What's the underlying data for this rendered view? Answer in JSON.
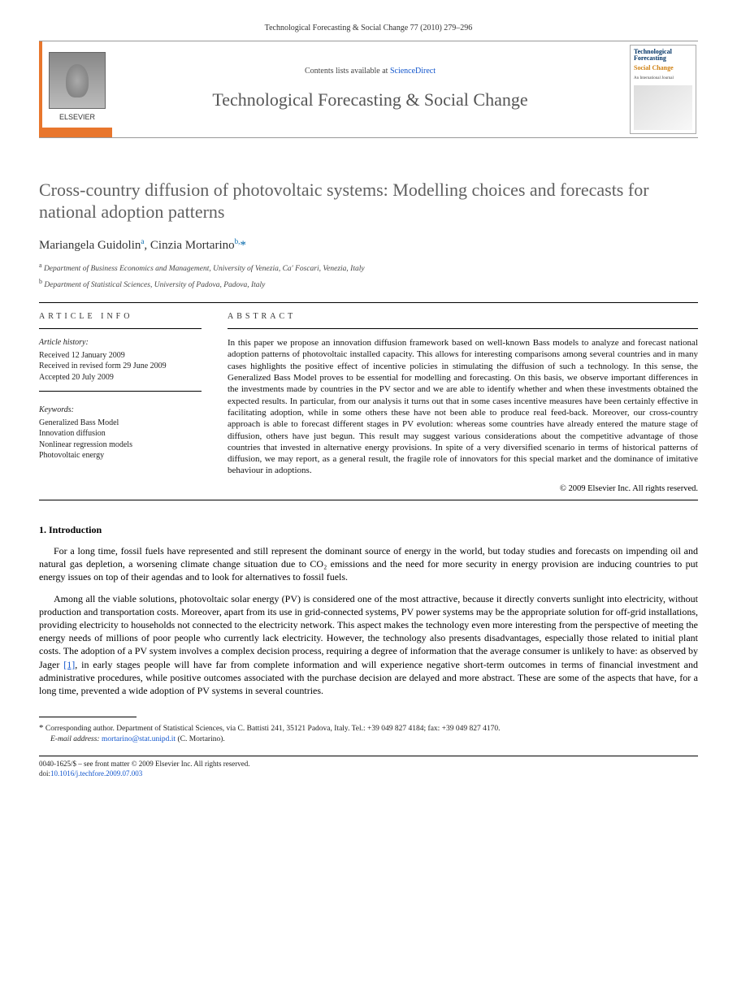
{
  "header": {
    "citation": "Technological Forecasting & Social Change 77 (2010) 279–296",
    "contents_prefix": "Contents lists available at ",
    "contents_link": "ScienceDirect",
    "journal_title": "Technological Forecasting & Social Change",
    "publisher": "ELSEVIER",
    "cover": {
      "line1": "Technological Forecasting",
      "line2": "Social Change",
      "sub": "An International Journal"
    }
  },
  "article": {
    "title": "Cross-country diffusion of photovoltaic systems: Modelling choices and forecasts for national adoption patterns",
    "authors_html": "Mariangela Guidolin",
    "author1": "Mariangela Guidolin",
    "author1_aff": "a",
    "author2": "Cinzia Mortarino",
    "author2_aff": "b,",
    "corr_mark": "*",
    "affiliations": [
      {
        "sup": "a",
        "text": "Department of Business Economics and Management, University of Venezia, Ca' Foscari, Venezia, Italy"
      },
      {
        "sup": "b",
        "text": "Department of Statistical Sciences, University of Padova, Padova, Italy"
      }
    ]
  },
  "info": {
    "heading": "article info",
    "history_title": "Article history:",
    "history": [
      "Received 12 January 2009",
      "Received in revised form 29 June 2009",
      "Accepted 20 July 2009"
    ],
    "keywords_title": "Keywords:",
    "keywords": [
      "Generalized Bass Model",
      "Innovation diffusion",
      "Nonlinear regression models",
      "Photovoltaic energy"
    ]
  },
  "abstract": {
    "heading": "abstract",
    "text": "In this paper we propose an innovation diffusion framework based on well-known Bass models to analyze and forecast national adoption patterns of photovoltaic installed capacity. This allows for interesting comparisons among several countries and in many cases highlights the positive effect of incentive policies in stimulating the diffusion of such a technology. In this sense, the Generalized Bass Model proves to be essential for modelling and forecasting. On this basis, we observe important differences in the investments made by countries in the PV sector and we are able to identify whether and when these investments obtained the expected results. In particular, from our analysis it turns out that in some cases incentive measures have been certainly effective in facilitating adoption, while in some others these have not been able to produce real feed-back. Moreover, our cross-country approach is able to forecast different stages in PV evolution: whereas some countries have already entered the mature stage of diffusion, others have just begun. This result may suggest various considerations about the competitive advantage of those countries that invested in alternative energy provisions. In spite of a very diversified scenario in terms of historical patterns of diffusion, we may report, as a general result, the fragile role of innovators for this special market and the dominance of imitative behaviour in adoptions.",
    "copyright": "© 2009 Elsevier Inc. All rights reserved."
  },
  "body": {
    "section1_heading": "1. Introduction",
    "para1": "For a long time, fossil fuels have represented and still represent the dominant source of energy in the world, but today studies and forecasts on impending oil and natural gas depletion, a worsening climate change situation due to CO₂ emissions and the need for more security in energy provision are inducing countries to put energy issues on top of their agendas and to look for alternatives to fossil fuels.",
    "para2_a": "Among all the viable solutions, photovoltaic solar energy (PV) is considered one of the most attractive, because it directly converts sunlight into electricity, without production and transportation costs. Moreover, apart from its use in grid-connected systems, PV power systems may be the appropriate solution for off-grid installations, providing electricity to households not connected to the electricity network. This aspect makes the technology even more interesting from the perspective of meeting the energy needs of millions of poor people who currently lack electricity. However, the technology also presents disadvantages, especially those related to initial plant costs. The adoption of a PV system involves a complex decision process, requiring a degree of information that the average consumer is unlikely to have: as observed by Jager ",
    "para2_ref": "[1]",
    "para2_b": ", in early stages people will have far from complete information and will experience negative short-term outcomes in terms of financial investment and administrative procedures, while positive outcomes associated with the purchase decision are delayed and more abstract. These are some of the aspects that have, for a long time, prevented a wide adoption of PV systems in several countries."
  },
  "footnote": {
    "corr_text": "Corresponding author. Department of Statistical Sciences, via C. Battisti 241, 35121 Padova, Italy. Tel.: +39 049 827 4184; fax: +39 049 827 4170.",
    "email_label": "E-mail address:",
    "email": "mortarino@stat.unipd.it",
    "email_suffix": "(C. Mortarino)."
  },
  "footer": {
    "line1": "0040-1625/$ – see front matter © 2009 Elsevier Inc. All rights reserved.",
    "doi_label": "doi:",
    "doi": "10.1016/j.techfore.2009.07.003"
  },
  "colors": {
    "elsevier_orange": "#e8762d",
    "link_blue": "#1155cc",
    "title_gray": "#606060"
  }
}
